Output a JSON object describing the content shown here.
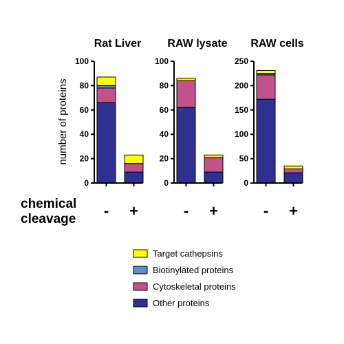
{
  "chart_data": [
    {
      "type": "bar",
      "stacked": true,
      "title": "Rat Liver",
      "ylabel": "number of proteins",
      "ylim": [
        0,
        100
      ],
      "yticks": [
        0,
        20,
        40,
        60,
        80,
        100
      ],
      "categories": [
        "-",
        "+"
      ],
      "series": [
        {
          "name": "Other proteins",
          "values": [
            66,
            9
          ]
        },
        {
          "name": "Cytoskeletal proteins",
          "values": [
            12,
            7
          ]
        },
        {
          "name": "Biotinylated proteins",
          "values": [
            2,
            0
          ]
        },
        {
          "name": "Target cathepsins",
          "values": [
            7,
            7
          ]
        }
      ]
    },
    {
      "type": "bar",
      "stacked": true,
      "title": "RAW lysate",
      "ylim": [
        0,
        100
      ],
      "yticks": [
        0,
        20,
        40,
        60,
        80,
        100
      ],
      "categories": [
        "-",
        "+"
      ],
      "series": [
        {
          "name": "Other proteins",
          "values": [
            62,
            9
          ]
        },
        {
          "name": "Cytoskeletal proteins",
          "values": [
            22,
            12
          ]
        },
        {
          "name": "Biotinylated proteins",
          "values": [
            0,
            0
          ]
        },
        {
          "name": "Target cathepsins",
          "values": [
            2,
            2
          ]
        }
      ]
    },
    {
      "type": "bar",
      "stacked": true,
      "title": "RAW cells",
      "ylim": [
        0,
        250
      ],
      "yticks": [
        0,
        50,
        100,
        150,
        200,
        250
      ],
      "categories": [
        "-",
        "+"
      ],
      "series": [
        {
          "name": "Other proteins",
          "values": [
            172,
            21
          ]
        },
        {
          "name": "Cytoskeletal proteins",
          "values": [
            50,
            8
          ]
        },
        {
          "name": "Biotinylated proteins",
          "values": [
            3,
            0
          ]
        },
        {
          "name": "Target cathepsins",
          "values": [
            6,
            6
          ]
        }
      ]
    }
  ],
  "condition": {
    "line1": "chemical",
    "line2": "cleavage"
  },
  "legend": [
    {
      "label": "Target cathepsins",
      "color": "#ffff00"
    },
    {
      "label": "Biotinylated proteins",
      "color": "#5b8fcc"
    },
    {
      "label": "Cytoskeletal proteins",
      "color": "#c2528a"
    },
    {
      "label": "Other proteins",
      "color": "#2e3192"
    }
  ],
  "colors": {
    "Other proteins": "#2e3192",
    "Cytoskeletal proteins": "#c2528a",
    "Biotinylated proteins": "#5b8fcc",
    "Target cathepsins": "#ffff00"
  }
}
